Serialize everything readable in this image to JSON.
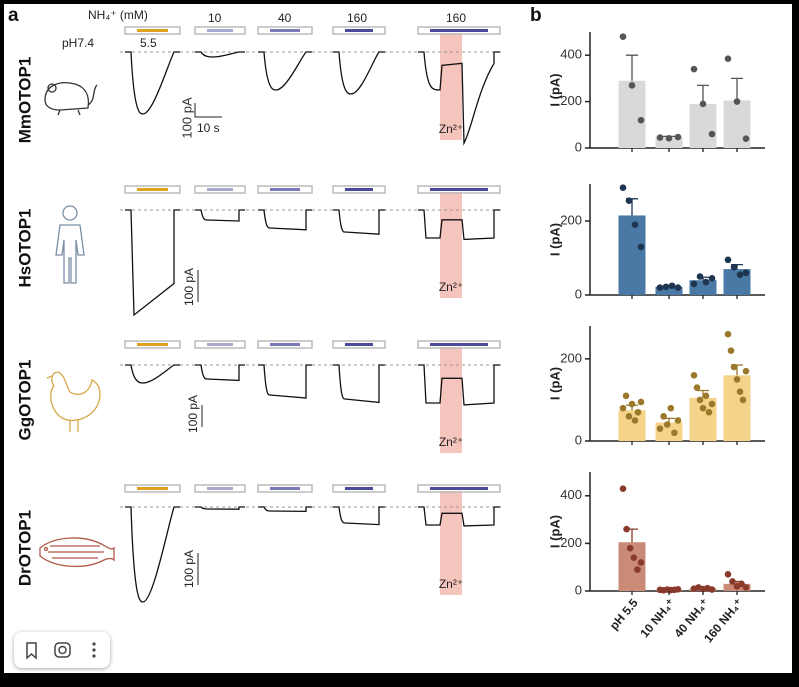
{
  "figure": {
    "panel_a": "a",
    "panel_b": "b",
    "rows": [
      "MmOTOP1",
      "HsOTOP1",
      "GgOTOP1",
      "DrOTOP1"
    ],
    "nh4_header": "NH₄⁺ (mM)",
    "concentrations": [
      "10",
      "40",
      "160",
      "160"
    ],
    "ph_baseline": "pH7.4",
    "ph_test": "5.5",
    "scale_current": "100 pA",
    "scale_time": "10 s",
    "zn_label": "Zn²⁺"
  },
  "chart_data": [
    {
      "type": "bar",
      "y_label": "I (pA)",
      "categories": [
        null,
        null,
        null,
        null
      ],
      "values": [
        290,
        45,
        190,
        205
      ],
      "errors": [
        110,
        5,
        80,
        95
      ],
      "points": [
        [
          480,
          270,
          120
        ],
        [
          45,
          42,
          47
        ],
        [
          340,
          190,
          60
        ],
        [
          385,
          200,
          40
        ]
      ],
      "color": "#d9d9d9",
      "point_color": "#555555",
      "ylim": [
        0,
        500
      ],
      "yticks": [
        0,
        200,
        400
      ]
    },
    {
      "type": "bar",
      "y_label": "I (pA)",
      "categories": [
        null,
        null,
        null,
        null
      ],
      "values": [
        215,
        22,
        40,
        70
      ],
      "errors": [
        45,
        3,
        8,
        12
      ],
      "points": [
        [
          290,
          255,
          190,
          130
        ],
        [
          20,
          22,
          25,
          20
        ],
        [
          30,
          50,
          35,
          45
        ],
        [
          95,
          75,
          55,
          60
        ]
      ],
      "color": "#4a79a5",
      "point_color": "#1d3550",
      "ylim": [
        0,
        300
      ],
      "yticks": [
        0,
        200
      ]
    },
    {
      "type": "bar",
      "y_label": "I (pA)",
      "categories": [
        null,
        null,
        null,
        null
      ],
      "values": [
        75,
        45,
        105,
        160
      ],
      "errors": [
        12,
        10,
        18,
        25
      ],
      "points": [
        [
          80,
          110,
          60,
          90,
          50,
          70,
          95
        ],
        [
          30,
          60,
          40,
          80,
          20,
          50
        ],
        [
          160,
          130,
          100,
          80,
          110,
          70,
          90
        ],
        [
          260,
          220,
          180,
          150,
          120,
          100,
          170
        ]
      ],
      "color": "#f6d38a",
      "point_color": "#9a7a2a",
      "ylim": [
        0,
        280
      ],
      "yticks": [
        0,
        200
      ]
    },
    {
      "type": "bar",
      "y_label": "I (pA)",
      "categories": [
        "pH 5.5",
        "10 NH₄⁺",
        "40 NH₄⁺",
        "160 NH₄⁺"
      ],
      "values": [
        205,
        5,
        10,
        30
      ],
      "errors": [
        55,
        2,
        3,
        10
      ],
      "points": [
        [
          430,
          260,
          180,
          140,
          90,
          120
        ],
        [
          5,
          3,
          6,
          4,
          5,
          7
        ],
        [
          10,
          15,
          8,
          12,
          6
        ],
        [
          70,
          40,
          20,
          30,
          15
        ]
      ],
      "color": "#c98b76",
      "point_color": "#8a3a2a",
      "ylim": [
        0,
        500
      ],
      "yticks": [
        0,
        200,
        400
      ]
    }
  ]
}
